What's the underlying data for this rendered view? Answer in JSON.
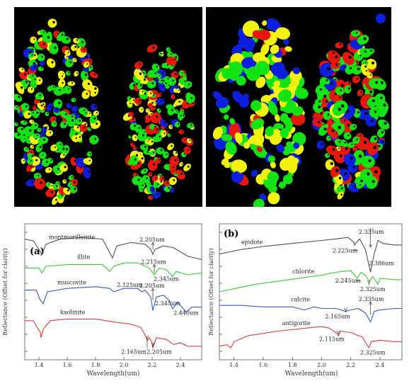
{
  "maps": {
    "colors": {
      "red": "#e8170c",
      "green": "#12e312",
      "yellow": "#f2f20e",
      "blue": "#0c1ee0"
    }
  },
  "chart_data": [
    {
      "type": "line",
      "panel_label": "(a)",
      "xlabel": "Wavelength(um)",
      "ylabel": "Reflectance (Offset for clarity)",
      "xlim": [
        1.3,
        2.55
      ],
      "xticks": [
        "1.4",
        "1.6",
        "1.8",
        "2.0",
        "2.2",
        "2.4"
      ],
      "series": [
        {
          "name": "montmorillonite",
          "color": "#505050",
          "x": [
            1.3,
            1.36,
            1.4,
            1.42,
            1.45,
            1.55,
            1.7,
            1.85,
            1.9,
            1.92,
            1.95,
            2.05,
            2.15,
            2.19,
            2.205,
            2.22,
            2.28,
            2.35,
            2.45,
            2.55
          ],
          "y": [
            0.86,
            0.85,
            0.8,
            0.77,
            0.83,
            0.86,
            0.87,
            0.86,
            0.78,
            0.75,
            0.82,
            0.84,
            0.83,
            0.8,
            0.77,
            0.8,
            0.82,
            0.81,
            0.76,
            0.74
          ]
        },
        {
          "name": "illite",
          "color": "#2ed12e",
          "x": [
            1.3,
            1.4,
            1.42,
            1.45,
            1.6,
            1.85,
            1.9,
            1.93,
            2.0,
            2.1,
            2.18,
            2.215,
            2.25,
            2.3,
            2.345,
            2.37,
            2.45,
            2.55
          ],
          "y": [
            0.69,
            0.69,
            0.66,
            0.7,
            0.71,
            0.71,
            0.67,
            0.7,
            0.72,
            0.72,
            0.69,
            0.65,
            0.69,
            0.68,
            0.64,
            0.67,
            0.65,
            0.66
          ]
        },
        {
          "name": "muscovite",
          "color": "#3a55d6",
          "x": [
            1.3,
            1.38,
            1.41,
            1.43,
            1.46,
            1.6,
            1.8,
            1.9,
            1.93,
            2.0,
            2.1,
            2.125,
            2.15,
            2.19,
            2.205,
            2.23,
            2.28,
            2.32,
            2.345,
            2.38,
            2.44,
            2.48,
            2.55
          ],
          "y": [
            0.56,
            0.56,
            0.5,
            0.48,
            0.55,
            0.57,
            0.58,
            0.57,
            0.55,
            0.57,
            0.57,
            0.55,
            0.56,
            0.52,
            0.44,
            0.52,
            0.53,
            0.5,
            0.45,
            0.49,
            0.43,
            0.46,
            0.46
          ]
        },
        {
          "name": "kaolinite",
          "color": "#e43a3a",
          "x": [
            1.3,
            1.36,
            1.395,
            1.41,
            1.415,
            1.43,
            1.48,
            1.6,
            1.8,
            1.95,
            2.05,
            2.12,
            2.16,
            2.165,
            2.18,
            2.2,
            2.205,
            2.23,
            2.3,
            2.35,
            2.4,
            2.45,
            2.55
          ],
          "y": [
            0.38,
            0.38,
            0.33,
            0.31,
            0.28,
            0.33,
            0.38,
            0.39,
            0.39,
            0.37,
            0.36,
            0.34,
            0.28,
            0.26,
            0.28,
            0.25,
            0.22,
            0.28,
            0.27,
            0.24,
            0.25,
            0.23,
            0.23
          ]
        }
      ],
      "annotations": [
        "2.205um",
        "2.215um",
        "2.345um",
        "2.125um",
        "2.205um",
        "2.345um",
        "2.440um",
        "2.165um",
        "2.205um"
      ]
    },
    {
      "type": "line",
      "panel_label": "(b)",
      "xlabel": "Wavelength(um)",
      "ylabel": "Reflectance (Offset for clarity)",
      "xlim": [
        1.3,
        2.55
      ],
      "xticks": [
        "1.4",
        "1.6",
        "1.8",
        "2.0",
        "2.2",
        "2.4"
      ],
      "series": [
        {
          "name": "epidote",
          "color": "#505050",
          "x": [
            1.3,
            1.35,
            1.45,
            1.6,
            1.8,
            2.0,
            2.1,
            2.18,
            2.22,
            2.225,
            2.26,
            2.3,
            2.335,
            2.36,
            2.386,
            2.42,
            2.5,
            2.55
          ],
          "y": [
            0.82,
            0.83,
            0.85,
            0.87,
            0.89,
            0.91,
            0.92,
            0.93,
            0.9,
            0.88,
            0.92,
            0.85,
            0.7,
            0.82,
            0.91,
            0.89,
            0.88,
            0.88
          ]
        },
        {
          "name": "chlorite",
          "color": "#2ed12e",
          "x": [
            1.3,
            1.4,
            1.55,
            1.7,
            1.85,
            2.0,
            2.1,
            2.2,
            2.245,
            2.27,
            2.3,
            2.325,
            2.35,
            2.386,
            2.4,
            2.5,
            2.55
          ],
          "y": [
            0.57,
            0.59,
            0.62,
            0.64,
            0.66,
            0.68,
            0.7,
            0.71,
            0.66,
            0.7,
            0.68,
            0.64,
            0.67,
            0.62,
            0.66,
            0.65,
            0.65
          ]
        },
        {
          "name": "calcite",
          "color": "#3a55d6",
          "x": [
            1.3,
            1.45,
            1.6,
            1.8,
            1.88,
            1.95,
            2.0,
            2.1,
            2.165,
            2.2,
            2.25,
            2.3,
            2.335,
            2.36,
            2.4,
            2.5,
            2.55
          ],
          "y": [
            0.48,
            0.48,
            0.47,
            0.47,
            0.45,
            0.47,
            0.46,
            0.46,
            0.44,
            0.45,
            0.46,
            0.43,
            0.37,
            0.44,
            0.45,
            0.46,
            0.46
          ]
        },
        {
          "name": "antigorite",
          "color": "#e43a3a",
          "x": [
            1.3,
            1.35,
            1.38,
            1.4,
            1.5,
            1.7,
            1.9,
            2.0,
            2.05,
            2.1,
            2.115,
            2.13,
            2.2,
            2.28,
            2.31,
            2.325,
            2.34,
            2.4,
            2.5,
            2.55
          ],
          "y": [
            0.21,
            0.22,
            0.2,
            0.24,
            0.28,
            0.31,
            0.33,
            0.34,
            0.33,
            0.3,
            0.28,
            0.31,
            0.3,
            0.27,
            0.22,
            0.2,
            0.24,
            0.25,
            0.24,
            0.24
          ]
        }
      ],
      "annotations": [
        "2.335um",
        "2.225um",
        "2.386um",
        "2.245um",
        "2.325um",
        "2.335um",
        "2.165um",
        "2.115um",
        "2.325um"
      ]
    }
  ]
}
